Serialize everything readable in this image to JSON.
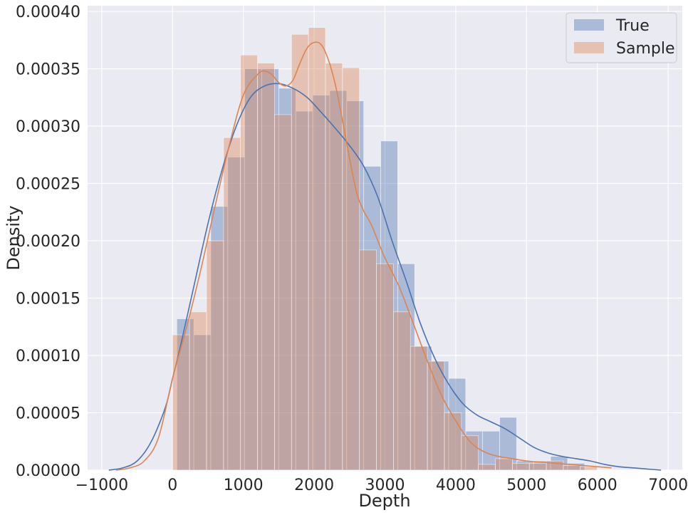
{
  "chart_data": {
    "type": "bar",
    "xlabel": "Depth",
    "ylabel": "Density",
    "xlim": [
      -1200,
      7200
    ],
    "ylim": [
      0,
      0.000405
    ],
    "xticks": [
      -1000,
      0,
      1000,
      2000,
      3000,
      4000,
      5000,
      6000,
      7000
    ],
    "xtick_labels": [
      "−1000",
      "0",
      "1000",
      "2000",
      "3000",
      "4000",
      "5000",
      "6000",
      "7000"
    ],
    "yticks": [
      0,
      5e-05,
      0.0001,
      0.00015,
      0.0002,
      0.00025,
      0.0003,
      0.00035,
      0.0004
    ],
    "ytick_labels": [
      "0.00000",
      "0.00005",
      "0.00010",
      "0.00015",
      "0.00020",
      "0.00025",
      "0.00030",
      "0.00035",
      "0.00040"
    ],
    "grid": true,
    "legend_position": "top-right",
    "colors": {
      "background": "#eaeaf2",
      "grid": "#ffffff",
      "true": "#4c72b0",
      "sample": "#dd8452"
    },
    "series": [
      {
        "name": "True",
        "bin_edges": [
          60,
          300,
          540,
          780,
          1020,
          1260,
          1500,
          1740,
          1980,
          2220,
          2460,
          2700,
          2940,
          3180,
          3420,
          3660,
          3900,
          4140,
          4380,
          4620,
          4860,
          5100,
          5340,
          5580,
          5820
        ],
        "values": [
          0.000132,
          0.000118,
          0.00023,
          0.000273,
          0.00035,
          0.00035,
          0.000333,
          0.000313,
          0.000327,
          0.000331,
          0.000322,
          0.000265,
          0.000287,
          0.00018,
          0.000108,
          9.5e-05,
          8e-05,
          3.4e-05,
          3.4e-05,
          4.6e-05,
          8e-06,
          8e-06,
          1.2e-05,
          6e-06
        ],
        "kde_x": [
          -900,
          -700,
          -500,
          -300,
          -100,
          0,
          100,
          300,
          500,
          700,
          900,
          1100,
          1300,
          1500,
          1700,
          1900,
          2100,
          2300,
          2500,
          2700,
          2900,
          3100,
          3300,
          3500,
          3700,
          3900,
          4100,
          4300,
          4500,
          4700,
          4900,
          5100,
          5300,
          5500,
          5700,
          5900,
          6100,
          6300,
          6500,
          6700,
          6900
        ],
        "kde_y": [
          0.0,
          2e-06,
          8e-06,
          2.5e-05,
          5.5e-05,
          8e-05,
          0.000105,
          0.00016,
          0.000215,
          0.000262,
          0.0003,
          0.000325,
          0.000335,
          0.000337,
          0.000333,
          0.000325,
          0.000312,
          0.000298,
          0.000283,
          0.000265,
          0.000238,
          0.0002,
          0.000165,
          0.000128,
          9.8e-05,
          7.5e-05,
          5.8e-05,
          4.8e-05,
          4.2e-05,
          3.6e-05,
          2.8e-05,
          2e-05,
          1.5e-05,
          1.2e-05,
          1e-05,
          8e-06,
          5e-06,
          3e-06,
          2e-06,
          1e-06,
          0.0
        ]
      },
      {
        "name": "Sample",
        "bin_edges": [
          0,
          240,
          480,
          720,
          960,
          1200,
          1440,
          1680,
          1920,
          2160,
          2400,
          2640,
          2880,
          3120,
          3360,
          3600,
          3840,
          4080,
          4320,
          4560,
          4800,
          5040,
          5280,
          5520,
          5760,
          6000
        ],
        "values": [
          0.000118,
          0.000138,
          0.0002,
          0.00029,
          0.000362,
          0.000355,
          0.00031,
          0.00038,
          0.000386,
          0.000355,
          0.000351,
          0.000192,
          0.00018,
          0.000138,
          0.000108,
          9.5e-05,
          5e-05,
          3e-05,
          5e-06,
          1e-05,
          6e-06,
          6e-06,
          8e-06,
          4e-06,
          3e-06
        ],
        "kde_x": [
          -800,
          -600,
          -400,
          -200,
          0,
          200,
          400,
          600,
          800,
          1000,
          1200,
          1300,
          1400,
          1500,
          1600,
          1700,
          1800,
          1900,
          2000,
          2100,
          2200,
          2300,
          2400,
          2500,
          2600,
          2700,
          2800,
          2900,
          3000,
          3200,
          3400,
          3600,
          3800,
          4000,
          4200,
          4400,
          4600,
          4800,
          5000,
          5200,
          5400,
          5600,
          5800,
          6000,
          6200
        ],
        "kde_y": [
          0.0,
          2e-06,
          8e-06,
          2.8e-05,
          8e-05,
          0.000125,
          0.000175,
          0.00023,
          0.000283,
          0.000327,
          0.000345,
          0.000348,
          0.000345,
          0.000338,
          0.000335,
          0.00034,
          0.000355,
          0.000368,
          0.000373,
          0.000371,
          0.000358,
          0.000336,
          0.000305,
          0.000272,
          0.000242,
          0.000226,
          0.000215,
          0.0002,
          0.000185,
          0.00016,
          0.000128,
          9.5e-05,
          6.5e-05,
          4.3e-05,
          2.5e-05,
          1.6e-05,
          1.2e-05,
          1e-05,
          8e-06,
          7e-06,
          6e-06,
          5e-06,
          4e-06,
          3e-06,
          2e-06
        ]
      }
    ]
  }
}
